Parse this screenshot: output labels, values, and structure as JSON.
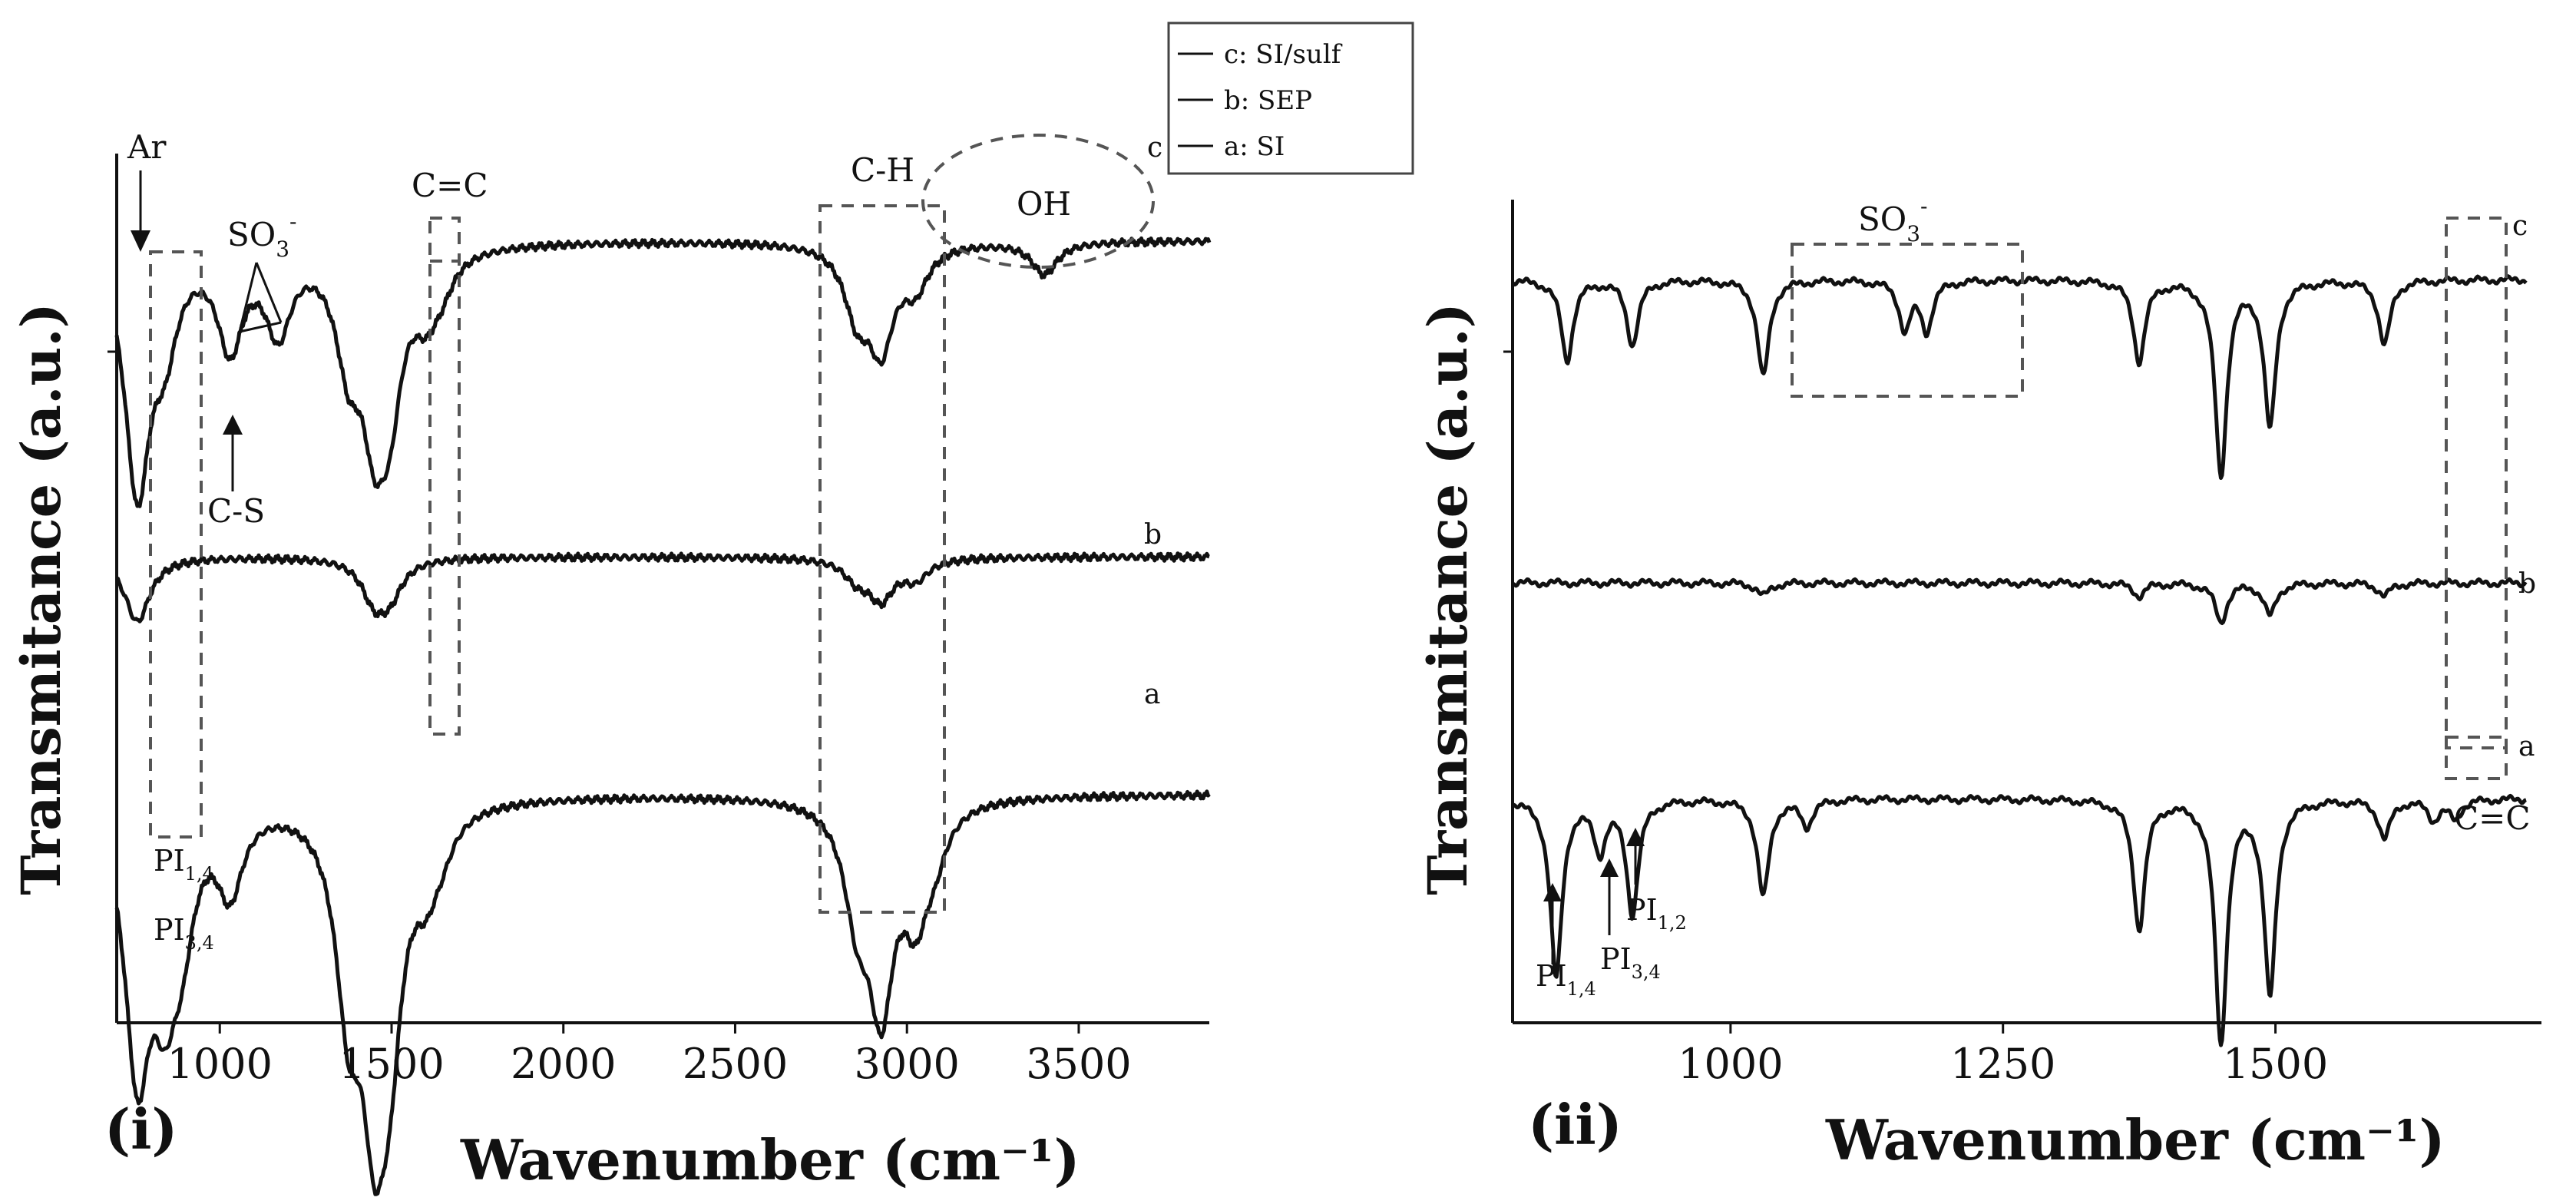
{
  "figure": {
    "panel_i_label": "(i)",
    "panel_ii_label": "(ii)",
    "ylabel": "Transmitance  (a.u.)",
    "xlabel": "Wavenumber (cm⁻¹)"
  },
  "legend": {
    "items": [
      "c: SI/sulf",
      "b: SEP",
      "a: SI"
    ]
  },
  "annotations_i": {
    "ar": "Ar",
    "so3": "SO",
    "so3_sub": "3",
    "so3_sup": "-",
    "cs": "C-S",
    "cc": "C=C",
    "ch": "C-H",
    "oh": "OH",
    "pi14": "PI",
    "pi14_sub": "1,4",
    "pi34": "PI",
    "pi34_sub": "3,4"
  },
  "annotations_ii": {
    "so3": "SO",
    "so3_sub": "3",
    "so3_sup": "-",
    "cc": "C=C",
    "pi14": "PI",
    "pi14_sub": "1,4",
    "pi34": "PI",
    "pi34_sub": "3,4",
    "pi12": "PI",
    "pi12_sub": "1,2"
  },
  "chart_data": [
    {
      "type": "line",
      "panel": "(i)",
      "title": "",
      "xlabel": "Wavenumber (cm⁻¹)",
      "ylabel": "Transmitance  (a.u.)",
      "xlim": [
        700,
        3880
      ],
      "x_ticks": [
        1000,
        1500,
        2000,
        2500,
        3000,
        3500
      ],
      "y_units": "arbitrary (stacked, offset)",
      "legend_position": "top-right",
      "series": [
        {
          "name": "a: SI",
          "label": "a",
          "baseline": 0.2,
          "peaks": [
            [
              760,
              0.8
            ],
            [
              840,
              0.45
            ],
            [
              890,
              0.3
            ],
            [
              1030,
              0.25
            ],
            [
              1375,
              0.55
            ],
            [
              1450,
              0.78
            ],
            [
              1495,
              0.55
            ],
            [
              1600,
              0.18
            ],
            [
              1645,
              0.08
            ],
            [
              2855,
              0.3
            ],
            [
              2925,
              0.6
            ],
            [
              3025,
              0.3
            ],
            [
              3080,
              0.12
            ]
          ]
        },
        {
          "name": "b: SEP",
          "label": "b",
          "baseline": 0.5,
          "peaks": [
            [
              760,
              0.2
            ],
            [
              1450,
              0.12
            ],
            [
              1495,
              0.1
            ],
            [
              2925,
              0.12
            ],
            [
              2855,
              0.06
            ],
            [
              3025,
              0.06
            ]
          ]
        },
        {
          "name": "c: SI/sulf",
          "label": "c",
          "baseline": 0.9,
          "peaks": [
            [
              760,
              0.75
            ],
            [
              840,
              0.25
            ],
            [
              1030,
              0.3
            ],
            [
              1170,
              0.25
            ],
            [
              1375,
              0.3
            ],
            [
              1450,
              0.45
            ],
            [
              1495,
              0.38
            ],
            [
              1600,
              0.15
            ],
            [
              1645,
              0.08
            ],
            [
              2855,
              0.2
            ],
            [
              2925,
              0.3
            ],
            [
              3025,
              0.12
            ],
            [
              3400,
              0.1
            ]
          ]
        }
      ],
      "annotations": [
        "Ar",
        "SO3-",
        "C-S",
        "C=C",
        "C-H",
        "OH",
        "PI1,4",
        "PI3,4"
      ]
    },
    {
      "type": "line",
      "panel": "(ii)",
      "title": "",
      "xlabel": "Wavenumber (cm⁻¹)",
      "ylabel": "Transmitance  (a.u.)",
      "xlim": [
        800,
        1730
      ],
      "x_ticks": [
        1000,
        1250,
        1500
      ],
      "y_units": "arbitrary (stacked, offset)",
      "series": [
        {
          "name": "a: SI",
          "label": "a",
          "baseline": 0.25,
          "peaks": [
            [
              840,
              0.55
            ],
            [
              880,
              0.15
            ],
            [
              910,
              0.35
            ],
            [
              1030,
              0.3
            ],
            [
              1070,
              0.08
            ],
            [
              1375,
              0.4
            ],
            [
              1450,
              0.75
            ],
            [
              1495,
              0.6
            ],
            [
              1600,
              0.12
            ],
            [
              1645,
              0.06
            ],
            [
              1665,
              0.06
            ]
          ]
        },
        {
          "name": "b: SEP",
          "label": "b",
          "baseline": 0.52,
          "peaks": [
            [
              1030,
              0.04
            ],
            [
              1375,
              0.04
            ],
            [
              1450,
              0.12
            ],
            [
              1495,
              0.1
            ],
            [
              1600,
              0.04
            ]
          ]
        },
        {
          "name": "c: SI/sulf",
          "label": "c",
          "baseline": 0.9,
          "peaks": [
            [
              850,
              0.25
            ],
            [
              910,
              0.2
            ],
            [
              1030,
              0.3
            ],
            [
              1160,
              0.15
            ],
            [
              1180,
              0.15
            ],
            [
              1375,
              0.25
            ],
            [
              1450,
              0.6
            ],
            [
              1495,
              0.45
            ],
            [
              1600,
              0.2
            ]
          ]
        }
      ],
      "annotations": [
        "SO3-",
        "C=C",
        "PI1,4",
        "PI3,4",
        "PI1,2"
      ]
    }
  ]
}
